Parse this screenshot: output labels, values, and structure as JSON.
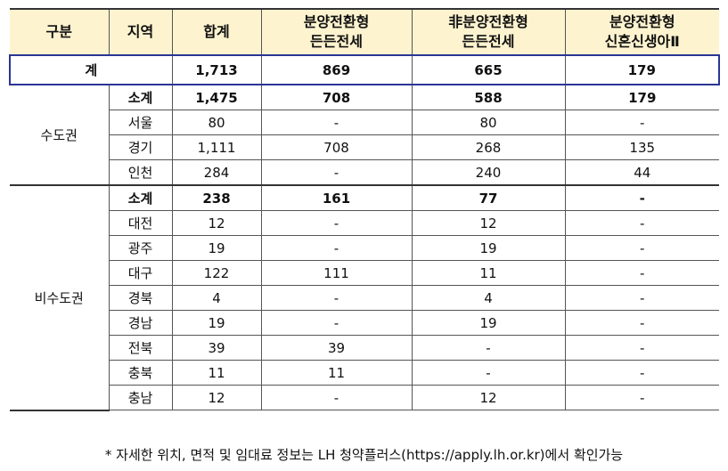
{
  "headers": [
    "구분",
    "지역",
    "합계",
    "분양전환형\n든든전세",
    "非분양전환형\n든든전세",
    "분양전환형\n신혼신생아Ⅱ"
  ],
  "total": {
    "label": "계",
    "values": [
      "1,713",
      "869",
      "665",
      "179"
    ]
  },
  "groups": [
    {
      "name": "수도권",
      "rows": [
        {
          "region": "소계",
          "values": [
            "1,475",
            "708",
            "588",
            "179"
          ]
        },
        {
          "region": "서울",
          "values": [
            "80",
            "-",
            "80",
            "-"
          ]
        },
        {
          "region": "경기",
          "values": [
            "1,111",
            "708",
            "268",
            "135"
          ]
        },
        {
          "region": "인천",
          "values": [
            "284",
            "-",
            "240",
            "44"
          ]
        }
      ]
    },
    {
      "name": "비수도권",
      "rows": [
        {
          "region": "소계",
          "values": [
            "238",
            "161",
            "77",
            "-"
          ]
        },
        {
          "region": "대전",
          "values": [
            "12",
            "-",
            "12",
            "-"
          ]
        },
        {
          "region": "광주",
          "values": [
            "19",
            "-",
            "19",
            "-"
          ]
        },
        {
          "region": "대구",
          "values": [
            "122",
            "111",
            "11",
            "-"
          ]
        },
        {
          "region": "경북",
          "values": [
            "4",
            "-",
            "4",
            "-"
          ]
        },
        {
          "region": "경남",
          "values": [
            "19",
            "-",
            "19",
            "-"
          ]
        },
        {
          "region": "전북",
          "values": [
            "39",
            "39",
            "-",
            "-"
          ]
        },
        {
          "region": "충북",
          "values": [
            "11",
            "11",
            "-",
            "-"
          ]
        },
        {
          "region": "충남",
          "values": [
            "12",
            "-",
            "12",
            "-"
          ]
        }
      ]
    }
  ],
  "note": "* 자세한 위치, 면적 및 임대료 정보는 LH 청약플러스(https://apply.lh.or.kr)에서 확인가능"
}
